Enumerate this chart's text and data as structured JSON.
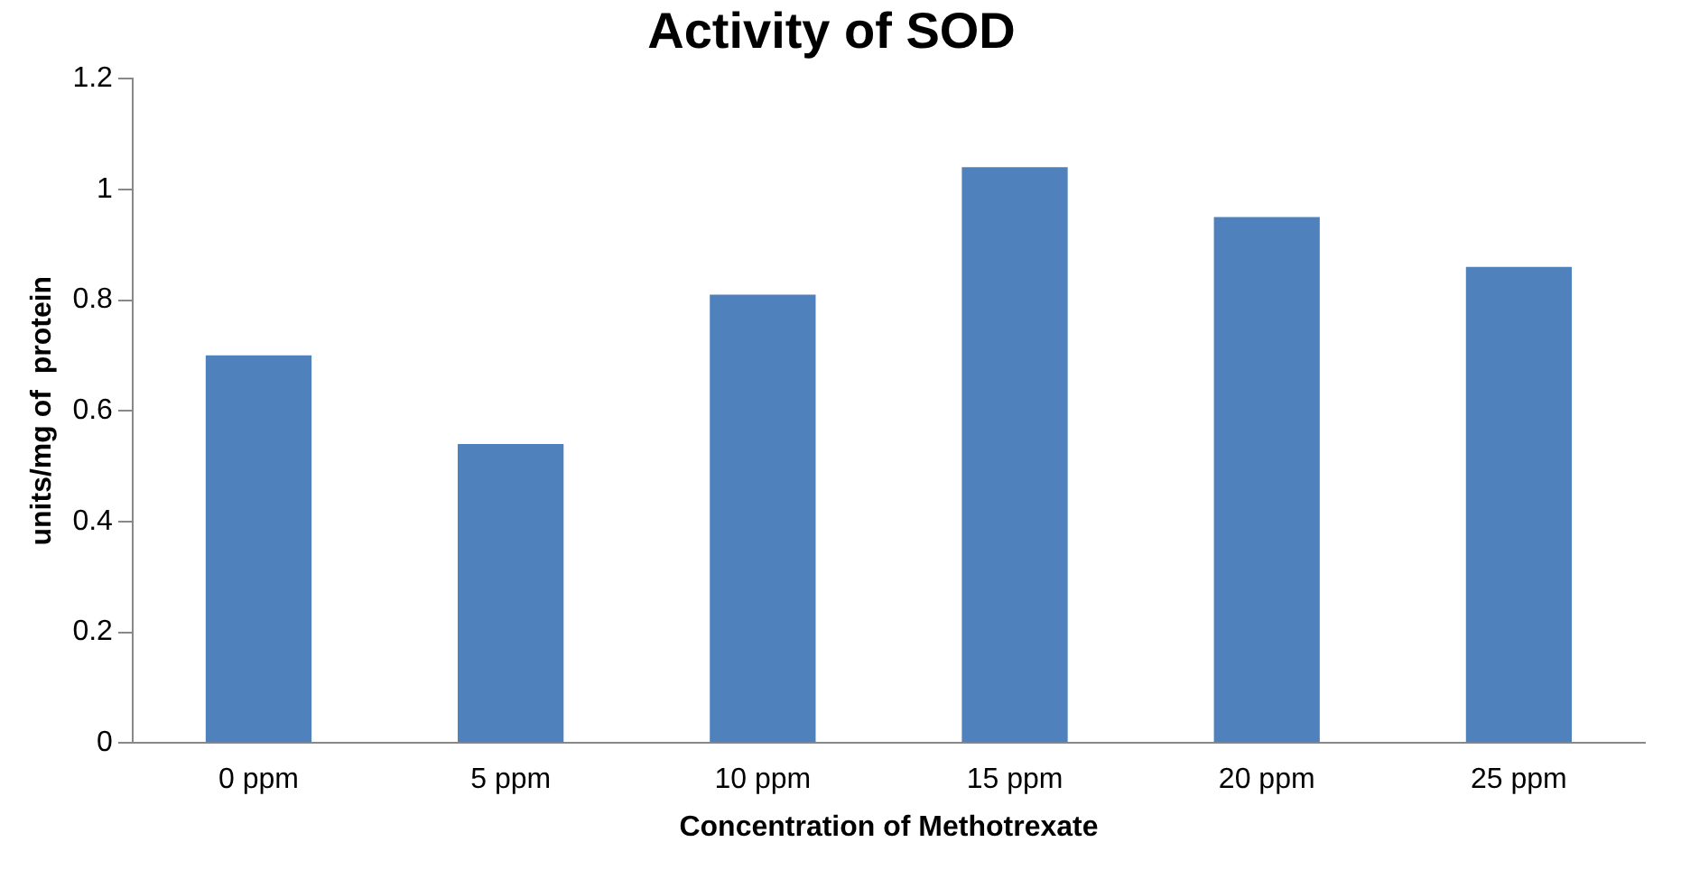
{
  "chart_data": {
    "type": "bar",
    "title": "Activity of SOD",
    "xlabel": "Concentration of Methotrexate",
    "ylabel": "units/mg of  protein",
    "categories": [
      "0 ppm",
      "5 ppm",
      "10 ppm",
      "15 ppm",
      "20 ppm",
      "25 ppm"
    ],
    "values": [
      0.7,
      0.54,
      0.81,
      1.04,
      0.95,
      0.86
    ],
    "color": "#4f81bd",
    "ylim": [
      0,
      1.2
    ],
    "yticks": [
      0,
      0.2,
      0.4,
      0.6,
      0.8,
      1,
      1.2
    ],
    "grid": false,
    "legend": false
  }
}
